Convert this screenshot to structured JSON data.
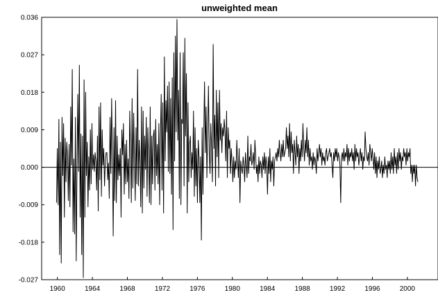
{
  "chart_data": {
    "type": "line",
    "title": "unweighted mean",
    "xlabel": "",
    "ylabel": "",
    "xlim": [
      1958.2,
      2003.5
    ],
    "ylim": [
      -0.027,
      0.036
    ],
    "y_ticks": [
      0.036,
      0.027,
      0.018,
      0.009,
      0.0,
      -0.009,
      -0.018,
      -0.027
    ],
    "y_tick_labels": [
      "0.036",
      "0.027",
      "0.018",
      "0.009",
      "0.000",
      "-0.009",
      "-0.018",
      "-0.027"
    ],
    "x_ticks": [
      1960,
      1964,
      1968,
      1972,
      1976,
      1980,
      1984,
      1988,
      1992,
      1996,
      2000
    ],
    "x_tick_labels": [
      "1960",
      "1964",
      "1968",
      "1972",
      "1976",
      "1980",
      "1984",
      "1988",
      "1992",
      "1996",
      "2000"
    ],
    "zero_line": true,
    "grid": false,
    "frequency": "monthly",
    "start": 1959.9,
    "end": 2001.2,
    "series": [
      {
        "values": [
          -0.0085,
          0.0045,
          -0.009,
          0.0115,
          -0.021,
          0.006,
          -0.023,
          0.012,
          -0.002,
          0.0105,
          -0.012,
          0.007,
          -0.0035,
          0.006,
          0.0025,
          -0.008,
          0.0055,
          -0.0095,
          0.0145,
          0.0005,
          0.0235,
          -0.0155,
          0.002,
          -0.016,
          0.012,
          -0.0225,
          -0.0005,
          0.0175,
          -0.001,
          0.0245,
          -0.012,
          0.008,
          -0.021,
          0.0075,
          -0.0265,
          0.021,
          -0.012,
          0.018,
          -0.002,
          0.006,
          -0.0095,
          0.0025,
          -0.0055,
          0.009,
          -0.004,
          0.0105,
          -0.0005,
          0.003,
          -0.001,
          0.0035,
          0.0015,
          -0.0055,
          0.0075,
          -0.0105,
          0.0145,
          -0.003,
          0.0155,
          -0.007,
          0.009,
          0.0005,
          0.0045,
          -0.0045,
          0.0015,
          0.0035,
          0.0035,
          -0.003,
          0.001,
          -0.0075,
          0.012,
          -0.0015,
          0.0165,
          0.0025,
          -0.0165,
          0.0095,
          -0.008,
          0.016,
          -0.0085,
          0.0075,
          -0.003,
          0.003,
          -0.002,
          0.0045,
          -0.012,
          0.009,
          0.003,
          0.0105,
          -0.0065,
          0.0055,
          -0.004,
          0.0065,
          -0.0035,
          0.002,
          -0.0075,
          0.0135,
          0.004,
          -0.0085,
          0.0165,
          -0.005,
          0.013,
          0.002,
          -0.008,
          0.0095,
          -0.004,
          0.0235,
          -0.0045,
          0.0065,
          0.0015,
          -0.0095,
          0.0145,
          -0.011,
          0.0135,
          -0.005,
          0.0075,
          -0.0005,
          0.012,
          -0.007,
          0.0095,
          0.002,
          -0.0085,
          0.0145,
          -0.009,
          0.0075,
          -0.004,
          0.0075,
          0.009,
          -0.0055,
          0.0115,
          -0.002,
          0.0055,
          -0.004,
          0.0105,
          -0.009,
          0.0075,
          0.0175,
          -0.0055,
          0.0155,
          -0.011,
          0.0265,
          0.0015,
          0.016,
          0.0085,
          0.0195,
          -0.001,
          0.0205,
          -0.0015,
          0.0165,
          -0.0065,
          0.0215,
          -0.015,
          0.0275,
          0.0015,
          0.0315,
          0.0085,
          0.0355,
          0.0065,
          0.0185,
          -0.0075,
          0.0275,
          -0.009,
          0.0115,
          0.0105,
          0.0275,
          -0.0045,
          0.031,
          0.0075,
          0.0225,
          -0.011,
          0.0155,
          -0.0035,
          0.0055,
          0.0075,
          -0.0025,
          0.0035,
          -0.0005,
          0.0135,
          -0.007,
          0.0095,
          -0.0045,
          0.0045,
          -0.0085,
          0.0065,
          0.0025,
          -0.0085,
          0.0025,
          -0.0175,
          0.0095,
          -0.0065,
          0.0075,
          0.0205,
          0.0035,
          0.0145,
          -0.0025,
          0.0085,
          0.0195,
          0.0035,
          -0.0015,
          0.0105,
          0.0045,
          -0.0035,
          0.0295,
          0.0045,
          0.0125,
          -0.0045,
          0.0185,
          0.0025,
          0.0155,
          -0.0025,
          0.0185,
          0.0065,
          0.0105,
          0.0035,
          0.0095,
          0.0075,
          0.0115,
          0.0085,
          0.0015,
          0.0135,
          -0.0025,
          0.0095,
          0.0045,
          0.0065,
          -0.0015,
          0.0045,
          0.0015,
          -0.0035,
          0.0025,
          -0.0025,
          0.0015,
          -0.0005,
          0.0065,
          0.0015,
          -0.0025,
          0.0045,
          -0.0085,
          0.0015,
          -0.0005,
          -0.0015,
          0.0025,
          0.0005,
          -0.0035,
          0.0035,
          0.0005,
          -0.0025,
          0.0075,
          -0.0015,
          0.0025,
          0.0015,
          0.0055,
          0.0005,
          0.0015,
          0.0035,
          -0.0005,
          0.0065,
          0.0025,
          -0.0015,
          0.0005,
          -0.0035,
          0.0025,
          -0.0015,
          0.0015,
          0.0005,
          -0.0025,
          0.0025,
          -0.0005,
          0.0035,
          -0.0015,
          0.0025,
          0.0005,
          -0.0065,
          0.0025,
          -0.0015,
          0.0045,
          -0.0035,
          0.0015,
          -0.0005,
          0.0025,
          -0.0045,
          0.0015,
          0.0025,
          0.0035,
          0.0015,
          0.0045,
          0.0025,
          0.0065,
          0.0035,
          0.0015,
          0.0055,
          0.0025,
          0.0065,
          0.0025,
          0.0035,
          0.0045,
          0.0095,
          0.0045,
          0.0075,
          0.0025,
          0.0105,
          0.0015,
          0.0085,
          0.0035,
          0.0055,
          -0.0015,
          0.0065,
          0.0035,
          0.0005,
          0.0075,
          0.0025,
          0.0055,
          -0.0015,
          0.0045,
          0.0015,
          0.0065,
          0.0025,
          0.0105,
          0.0045,
          0.0015,
          0.0065,
          0.0035,
          0.0095,
          0.0025,
          0.0065,
          0.0005,
          0.0045,
          0.0015,
          0.0025,
          -0.0005,
          0.0035,
          0.0005,
          0.0025,
          0.0015,
          -0.0015,
          0.0045,
          0.0015,
          0.0035,
          0.0055,
          0.0025,
          0.0045,
          0.0005,
          0.0035,
          0.0015,
          0.0025,
          0.0005,
          0.0035,
          0.0045,
          0.0015,
          0.0025,
          0.0035,
          0.0045,
          0.0025,
          0.0035,
          0.0005,
          -0.0025,
          0.0035,
          0.0015,
          0.0045,
          0.0025,
          0.0045,
          0.0015,
          0.0035,
          0.0025,
          0.0005,
          -0.0085,
          0.0025,
          0.0035,
          0.0015,
          0.0045,
          0.0015,
          0.0035,
          0.0025,
          0.0055,
          0.0005,
          0.0045,
          0.0015,
          0.0035,
          0.0025,
          0.0045,
          0.0015,
          0.0035,
          -0.0005,
          0.0055,
          0.0015,
          0.0045,
          0.0025,
          0.0035,
          0.0005,
          0.0025,
          0.0045,
          0.0015,
          0.0035,
          -0.0005,
          0.0025,
          0.0015,
          0.0085,
          0.0045,
          0.0025,
          0.0015,
          0.0035,
          0.0005,
          0.0055,
          0.0035,
          0.0015,
          0.0045,
          0.0025,
          -0.0005,
          0.0035,
          -0.0015,
          0.0025,
          -0.0025,
          0.0015,
          -0.0005,
          0.0025,
          -0.0015,
          -0.0005,
          0.0015,
          -0.0025,
          0.0005,
          -0.0015,
          0.0025,
          -0.0005,
          0.0005,
          -0.0025,
          0.0015,
          -0.0005,
          0.0015,
          -0.0015,
          0.0035,
          -0.0005,
          0.0025,
          -0.0015,
          0.0045,
          0.0005,
          0.0025,
          -0.0015,
          0.0035,
          -0.0005,
          0.0045,
          0.0015,
          0.0035,
          -0.0005,
          0.0025,
          0.0015,
          0.0045,
          0.0025,
          0.0035,
          0.0005,
          0.0045,
          0.0015,
          0.0035,
          0.0025,
          0.0045,
          -0.0015,
          0.0005,
          -0.0035,
          0.0005,
          -0.0015,
          0.0005,
          -0.0045,
          0.0005,
          -0.0025,
          -0.0035
        ]
      }
    ]
  }
}
